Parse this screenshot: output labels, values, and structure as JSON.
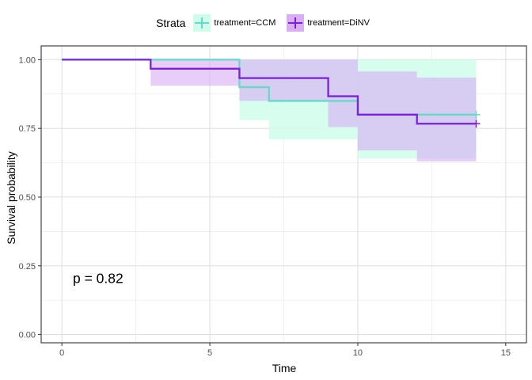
{
  "legend": {
    "title": "Strata",
    "items": [
      {
        "label": "treatment=CCM",
        "color": "#66D9C8",
        "fill": "#CFFDEB"
      },
      {
        "label": "treatment=DiNV",
        "color": "#7B1FE0",
        "fill": "#D9AEF2"
      }
    ]
  },
  "annotation": {
    "text": "p = 0.82"
  },
  "chart_data": {
    "type": "line",
    "title": "",
    "xlabel": "Time",
    "ylabel": "Survival probability",
    "xlim": [
      -0.7,
      15.7
    ],
    "ylim": [
      -0.03,
      1.05
    ],
    "xticks": [
      0,
      5,
      10,
      15
    ],
    "xtick_labels": [
      "0",
      "5",
      "10",
      "15"
    ],
    "yticks": [
      0,
      0.25,
      0.5,
      0.75,
      1.0
    ],
    "ytick_labels": [
      "0.00",
      "0.25",
      "0.50",
      "0.75",
      "1.00"
    ],
    "grid": true,
    "legend_position": "top",
    "series": [
      {
        "name": "treatment=CCM",
        "step_times": [
          0,
          6,
          7,
          10,
          14
        ],
        "survival": [
          1.0,
          0.9,
          0.85,
          0.8,
          0.8
        ],
        "ci_times": [
          3,
          6,
          7,
          10,
          12,
          14
        ],
        "ci_lower": [
          1.0,
          0.78,
          0.71,
          0.64,
          0.64
        ],
        "ci_upper": [
          1.0,
          1.0,
          1.0,
          1.0,
          1.0
        ],
        "censored_at": [
          14
        ]
      },
      {
        "name": "treatment=DiNV",
        "step_times": [
          0,
          3,
          6,
          9,
          10,
          12,
          14
        ],
        "survival": [
          1.0,
          0.967,
          0.933,
          0.867,
          0.8,
          0.767,
          0.767
        ],
        "ci_times": [
          3,
          6,
          9,
          10,
          12,
          14
        ],
        "ci_lower": [
          0.905,
          0.85,
          0.755,
          0.67,
          0.63
        ],
        "ci_upper": [
          1.0,
          1.0,
          1.0,
          0.957,
          0.935
        ],
        "censored_at": [
          14
        ]
      }
    ]
  }
}
